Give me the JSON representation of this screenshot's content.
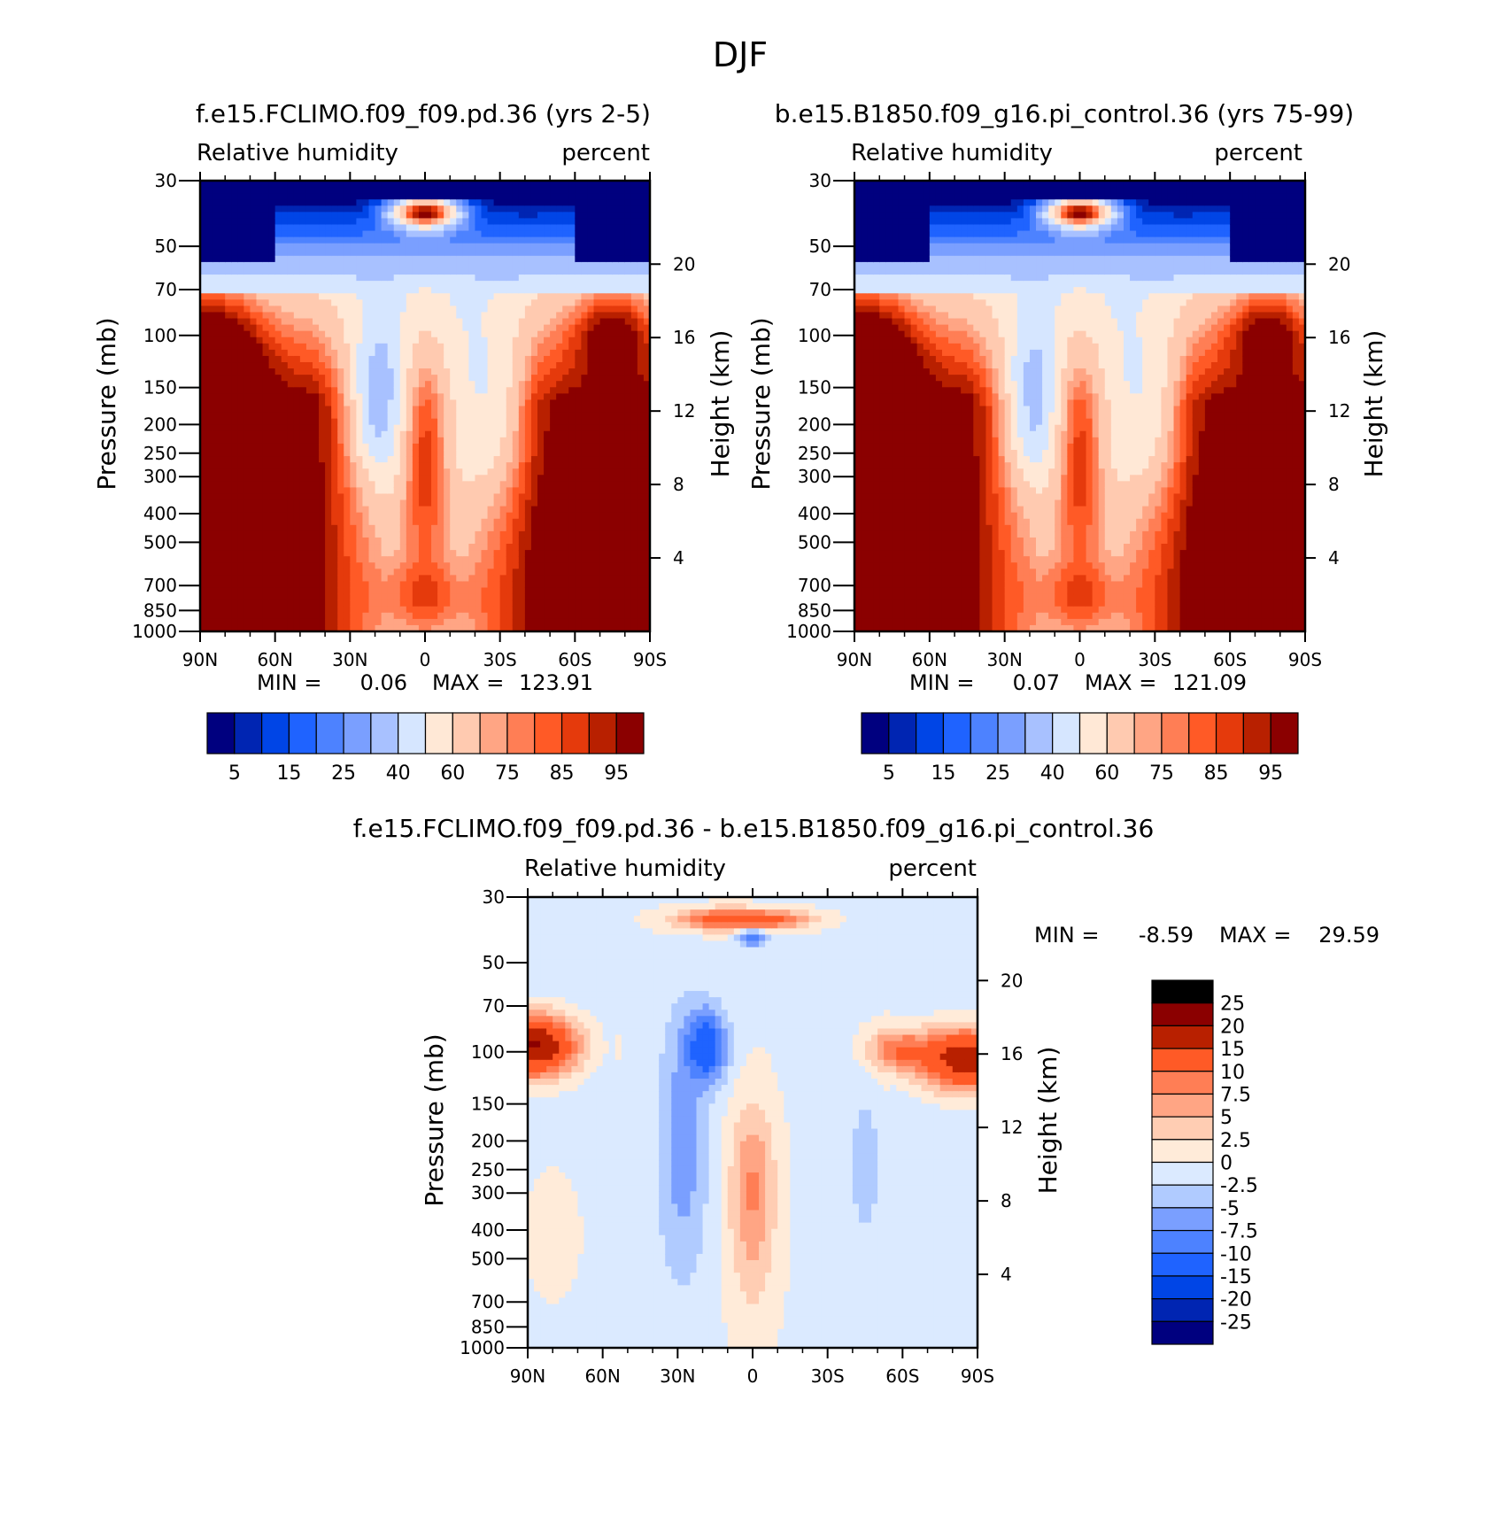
{
  "figure_title": "DJF",
  "palettes": {
    "abs_colors": [
      "#00007f",
      "#0025b2",
      "#0045e6",
      "#1f63ff",
      "#4d82ff",
      "#7a9fff",
      "#a8c1ff",
      "#d6e6ff",
      "#ffe8d6",
      "#ffcab0",
      "#ffa584",
      "#ff7e55",
      "#ff5a26",
      "#e53a0c",
      "#b82000",
      "#8b0000"
    ],
    "diff_colors": [
      "#00007f",
      "#0025b2",
      "#0045e6",
      "#1f63ff",
      "#4d82ff",
      "#7a9fff",
      "#b0cbff",
      "#dbeaff",
      "#ffebd9",
      "#ffcdb3",
      "#ffa584",
      "#ff7e55",
      "#ff5a26",
      "#b82000",
      "#8b0000"
    ]
  },
  "chart_data": [
    {
      "id": "panel1",
      "type": "contour",
      "title": "f.e15.FCLIMO.f09_f09.pd.36 (yrs 2-5)",
      "left_string": "Relative humidity",
      "right_string": "percent",
      "ylabel": "Pressure (mb)",
      "y2label": "Height (km)",
      "x_ticks": [
        {
          "v": -90,
          "label": "90N"
        },
        {
          "v": -60,
          "label": "60N"
        },
        {
          "v": -30,
          "label": "30N"
        },
        {
          "v": 0,
          "label": "0"
        },
        {
          "v": 30,
          "label": "30S"
        },
        {
          "v": 60,
          "label": "60S"
        },
        {
          "v": 90,
          "label": "90S"
        }
      ],
      "p_ticks": [
        30,
        50,
        70,
        100,
        150,
        200,
        250,
        300,
        400,
        500,
        700,
        850,
        1000
      ],
      "p_tick_labels": [
        "30",
        "50",
        "70",
        "100",
        "150",
        "200",
        "250",
        "300",
        "400",
        "500",
        "700",
        "850",
        "1000"
      ],
      "z_ticks": [
        {
          "km": 4,
          "label": "4"
        },
        {
          "km": 8,
          "label": "8"
        },
        {
          "km": 12,
          "label": "12"
        },
        {
          "km": 16,
          "label": "16"
        },
        {
          "km": 20,
          "label": "20"
        }
      ],
      "stats": {
        "min_label": "MIN =",
        "min": "0.06",
        "max_label": "MAX =",
        "max": "123.91"
      },
      "levels": [
        5,
        10,
        15,
        20,
        25,
        30,
        40,
        50,
        60,
        70,
        75,
        80,
        85,
        90,
        95
      ],
      "colorbar_labels": [
        "5",
        "15",
        "25",
        "40",
        "60",
        "75",
        "85",
        "95"
      ]
    },
    {
      "id": "panel2",
      "type": "contour",
      "title": "b.e15.B1850.f09_g16.pi_control.36 (yrs 75-99)",
      "left_string": "Relative humidity",
      "right_string": "percent",
      "ylabel": "Pressure (mb)",
      "y2label": "Height (km)",
      "x_ticks": [
        {
          "v": -90,
          "label": "90N"
        },
        {
          "v": -60,
          "label": "60N"
        },
        {
          "v": -30,
          "label": "30N"
        },
        {
          "v": 0,
          "label": "0"
        },
        {
          "v": 30,
          "label": "30S"
        },
        {
          "v": 60,
          "label": "60S"
        },
        {
          "v": 90,
          "label": "90S"
        }
      ],
      "p_ticks": [
        30,
        50,
        70,
        100,
        150,
        200,
        250,
        300,
        400,
        500,
        700,
        850,
        1000
      ],
      "p_tick_labels": [
        "30",
        "50",
        "70",
        "100",
        "150",
        "200",
        "250",
        "300",
        "400",
        "500",
        "700",
        "850",
        "1000"
      ],
      "z_ticks": [
        {
          "km": 4,
          "label": "4"
        },
        {
          "km": 8,
          "label": "8"
        },
        {
          "km": 12,
          "label": "12"
        },
        {
          "km": 16,
          "label": "16"
        },
        {
          "km": 20,
          "label": "20"
        }
      ],
      "stats": {
        "min_label": "MIN =",
        "min": "0.07",
        "max_label": "MAX =",
        "max": "121.09"
      },
      "levels": [
        5,
        10,
        15,
        20,
        25,
        30,
        40,
        50,
        60,
        70,
        75,
        80,
        85,
        90,
        95
      ],
      "colorbar_labels": [
        "5",
        "15",
        "25",
        "40",
        "60",
        "75",
        "85",
        "95"
      ]
    },
    {
      "id": "panel3",
      "type": "contour",
      "title": "f.e15.FCLIMO.f09_f09.pd.36 - b.e15.B1850.f09_g16.pi_control.36",
      "left_string": "Relative humidity",
      "right_string": "percent",
      "ylabel": "Pressure (mb)",
      "y2label": "Height (km)",
      "x_ticks": [
        {
          "v": -90,
          "label": "90N"
        },
        {
          "v": -60,
          "label": "60N"
        },
        {
          "v": -30,
          "label": "30N"
        },
        {
          "v": 0,
          "label": "0"
        },
        {
          "v": 30,
          "label": "30S"
        },
        {
          "v": 60,
          "label": "60S"
        },
        {
          "v": 90,
          "label": "90S"
        }
      ],
      "p_ticks": [
        30,
        50,
        70,
        100,
        150,
        200,
        250,
        300,
        400,
        500,
        700,
        850,
        1000
      ],
      "p_tick_labels": [
        "30",
        "50",
        "70",
        "100",
        "150",
        "200",
        "250",
        "300",
        "400",
        "500",
        "700",
        "850",
        "1000"
      ],
      "z_ticks": [
        {
          "km": 4,
          "label": "4"
        },
        {
          "km": 8,
          "label": "8"
        },
        {
          "km": 12,
          "label": "12"
        },
        {
          "km": 16,
          "label": "16"
        },
        {
          "km": 20,
          "label": "20"
        }
      ],
      "stats": {
        "min_label": "MIN =",
        "min": "-8.59",
        "max_label": "MAX =",
        "max": "29.59"
      },
      "levels": [
        -25,
        -20,
        -15,
        -10,
        -7.5,
        -5,
        -2.5,
        0,
        2.5,
        5,
        7.5,
        10,
        15,
        20,
        25
      ],
      "colorbar_labels": [
        "25",
        "20",
        "15",
        "10",
        "7.5",
        "5",
        "2.5",
        "0",
        "-2.5",
        "-5",
        "-7.5",
        "-10",
        "-15",
        "-20",
        "-25"
      ]
    }
  ]
}
